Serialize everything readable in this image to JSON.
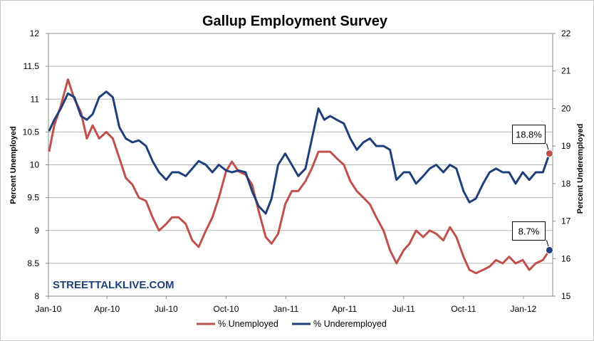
{
  "chart_data": {
    "type": "line",
    "title": "Gallup Employment Survey",
    "watermark": "STREETTALKLIVE.COM",
    "y_left": {
      "label": "Percent Unemployed",
      "range": [
        8,
        12
      ],
      "ticks": [
        "8",
        "8.5",
        "9",
        "9.5",
        "10",
        "10.5",
        "11",
        "11.5",
        "12"
      ]
    },
    "y_right": {
      "label": "Percent Underemployed",
      "range": [
        15,
        22
      ],
      "ticks": [
        "15",
        "16",
        "17",
        "18",
        "19",
        "20",
        "21",
        "22"
      ]
    },
    "x_axis": {
      "range": [
        "2010-01-01",
        "2012-02-15"
      ],
      "ticks": [
        {
          "date": "2010-01-01",
          "label": "Jan-10"
        },
        {
          "date": "2010-04-01",
          "label": "Apr-10"
        },
        {
          "date": "2010-07-01",
          "label": "Jul-10"
        },
        {
          "date": "2010-10-01",
          "label": "Oct-10"
        },
        {
          "date": "2011-01-01",
          "label": "Jan-11"
        },
        {
          "date": "2011-04-01",
          "label": "Apr-11"
        },
        {
          "date": "2011-07-01",
          "label": "Jul-11"
        },
        {
          "date": "2011-10-01",
          "label": "Oct-11"
        },
        {
          "date": "2012-01-01",
          "label": "Jan-12"
        }
      ]
    },
    "grid": "horizontal",
    "legend_position": "bottom",
    "series": [
      {
        "name": "% Unemployed",
        "axis": "left",
        "color": "#c0504d",
        "points": [
          [
            "2010-01-02",
            10.2
          ],
          [
            "2010-01-10",
            10.6
          ],
          [
            "2010-01-20",
            10.9
          ],
          [
            "2010-01-31",
            11.3
          ],
          [
            "2010-02-10",
            11.0
          ],
          [
            "2010-02-20",
            10.8
          ],
          [
            "2010-03-01",
            10.4
          ],
          [
            "2010-03-10",
            10.6
          ],
          [
            "2010-03-20",
            10.4
          ],
          [
            "2010-03-31",
            10.5
          ],
          [
            "2010-04-10",
            10.4
          ],
          [
            "2010-04-20",
            10.1
          ],
          [
            "2010-04-30",
            9.8
          ],
          [
            "2010-05-10",
            9.7
          ],
          [
            "2010-05-20",
            9.5
          ],
          [
            "2010-05-31",
            9.45
          ],
          [
            "2010-06-10",
            9.2
          ],
          [
            "2010-06-20",
            9.0
          ],
          [
            "2010-07-01",
            9.1
          ],
          [
            "2010-07-10",
            9.2
          ],
          [
            "2010-07-20",
            9.2
          ],
          [
            "2010-07-31",
            9.1
          ],
          [
            "2010-08-10",
            8.85
          ],
          [
            "2010-08-20",
            8.75
          ],
          [
            "2010-08-31",
            9.0
          ],
          [
            "2010-09-10",
            9.2
          ],
          [
            "2010-09-20",
            9.5
          ],
          [
            "2010-10-01",
            9.9
          ],
          [
            "2010-10-10",
            10.05
          ],
          [
            "2010-10-20",
            9.9
          ],
          [
            "2010-10-31",
            9.85
          ],
          [
            "2010-11-10",
            9.7
          ],
          [
            "2010-11-20",
            9.3
          ],
          [
            "2010-12-01",
            8.9
          ],
          [
            "2010-12-10",
            8.8
          ],
          [
            "2010-12-20",
            8.95
          ],
          [
            "2010-12-31",
            9.4
          ],
          [
            "2011-01-10",
            9.6
          ],
          [
            "2011-01-20",
            9.6
          ],
          [
            "2011-01-31",
            9.75
          ],
          [
            "2011-02-10",
            9.95
          ],
          [
            "2011-02-20",
            10.2
          ],
          [
            "2011-03-01",
            10.2
          ],
          [
            "2011-03-10",
            10.2
          ],
          [
            "2011-03-20",
            10.1
          ],
          [
            "2011-03-31",
            10.0
          ],
          [
            "2011-04-10",
            9.75
          ],
          [
            "2011-04-20",
            9.6
          ],
          [
            "2011-04-30",
            9.5
          ],
          [
            "2011-05-10",
            9.4
          ],
          [
            "2011-05-20",
            9.2
          ],
          [
            "2011-05-31",
            9.0
          ],
          [
            "2011-06-10",
            8.7
          ],
          [
            "2011-06-20",
            8.5
          ],
          [
            "2011-07-01",
            8.7
          ],
          [
            "2011-07-10",
            8.8
          ],
          [
            "2011-07-20",
            9.0
          ],
          [
            "2011-07-31",
            8.9
          ],
          [
            "2011-08-10",
            9.0
          ],
          [
            "2011-08-20",
            8.95
          ],
          [
            "2011-08-31",
            8.85
          ],
          [
            "2011-09-10",
            9.05
          ],
          [
            "2011-09-20",
            8.9
          ],
          [
            "2011-10-01",
            8.6
          ],
          [
            "2011-10-10",
            8.4
          ],
          [
            "2011-10-20",
            8.35
          ],
          [
            "2011-10-31",
            8.4
          ],
          [
            "2011-11-10",
            8.45
          ],
          [
            "2011-11-20",
            8.55
          ],
          [
            "2011-11-30",
            8.5
          ],
          [
            "2011-12-10",
            8.6
          ],
          [
            "2011-12-20",
            8.5
          ],
          [
            "2011-12-31",
            8.55
          ],
          [
            "2012-01-10",
            8.4
          ],
          [
            "2012-01-20",
            8.5
          ],
          [
            "2012-01-31",
            8.55
          ],
          [
            "2012-02-10",
            8.7
          ]
        ]
      },
      {
        "name": "% Underemployed",
        "axis": "right",
        "color": "#1f3f7a",
        "points": [
          [
            "2010-01-02",
            19.4
          ],
          [
            "2010-01-10",
            19.7
          ],
          [
            "2010-01-20",
            20.0
          ],
          [
            "2010-01-31",
            20.4
          ],
          [
            "2010-02-10",
            20.3
          ],
          [
            "2010-02-20",
            19.8
          ],
          [
            "2010-03-01",
            19.7
          ],
          [
            "2010-03-10",
            19.85
          ],
          [
            "2010-03-20",
            20.3
          ],
          [
            "2010-03-31",
            20.45
          ],
          [
            "2010-04-10",
            20.3
          ],
          [
            "2010-04-20",
            19.5
          ],
          [
            "2010-04-30",
            19.2
          ],
          [
            "2010-05-10",
            19.1
          ],
          [
            "2010-05-20",
            19.15
          ],
          [
            "2010-05-31",
            19.0
          ],
          [
            "2010-06-10",
            18.6
          ],
          [
            "2010-06-20",
            18.3
          ],
          [
            "2010-07-01",
            18.1
          ],
          [
            "2010-07-10",
            18.3
          ],
          [
            "2010-07-20",
            18.3
          ],
          [
            "2010-07-31",
            18.2
          ],
          [
            "2010-08-10",
            18.4
          ],
          [
            "2010-08-20",
            18.6
          ],
          [
            "2010-08-31",
            18.5
          ],
          [
            "2010-09-10",
            18.3
          ],
          [
            "2010-09-20",
            18.5
          ],
          [
            "2010-10-01",
            18.35
          ],
          [
            "2010-10-10",
            18.3
          ],
          [
            "2010-10-20",
            18.35
          ],
          [
            "2010-10-31",
            18.3
          ],
          [
            "2010-11-10",
            17.8
          ],
          [
            "2010-11-20",
            17.4
          ],
          [
            "2010-12-01",
            17.2
          ],
          [
            "2010-12-10",
            17.6
          ],
          [
            "2010-12-20",
            18.5
          ],
          [
            "2010-12-31",
            18.8
          ],
          [
            "2011-01-10",
            18.5
          ],
          [
            "2011-01-20",
            18.2
          ],
          [
            "2011-01-31",
            18.4
          ],
          [
            "2011-02-10",
            19.2
          ],
          [
            "2011-02-20",
            20.0
          ],
          [
            "2011-03-01",
            19.7
          ],
          [
            "2011-03-10",
            19.8
          ],
          [
            "2011-03-20",
            19.7
          ],
          [
            "2011-03-31",
            19.6
          ],
          [
            "2011-04-10",
            19.2
          ],
          [
            "2011-04-20",
            18.9
          ],
          [
            "2011-04-30",
            19.1
          ],
          [
            "2011-05-10",
            19.2
          ],
          [
            "2011-05-20",
            19.0
          ],
          [
            "2011-05-31",
            19.0
          ],
          [
            "2011-06-10",
            18.9
          ],
          [
            "2011-06-20",
            18.1
          ],
          [
            "2011-07-01",
            18.3
          ],
          [
            "2011-07-10",
            18.3
          ],
          [
            "2011-07-20",
            18.0
          ],
          [
            "2011-07-31",
            18.2
          ],
          [
            "2011-08-10",
            18.4
          ],
          [
            "2011-08-20",
            18.5
          ],
          [
            "2011-08-31",
            18.3
          ],
          [
            "2011-09-10",
            18.5
          ],
          [
            "2011-09-20",
            18.4
          ],
          [
            "2011-10-01",
            17.8
          ],
          [
            "2011-10-10",
            17.5
          ],
          [
            "2011-10-20",
            17.6
          ],
          [
            "2011-10-31",
            18.0
          ],
          [
            "2011-11-10",
            18.3
          ],
          [
            "2011-11-20",
            18.4
          ],
          [
            "2011-11-30",
            18.3
          ],
          [
            "2011-12-10",
            18.3
          ],
          [
            "2011-12-20",
            18.0
          ],
          [
            "2011-12-31",
            18.3
          ],
          [
            "2012-01-10",
            18.1
          ],
          [
            "2012-01-20",
            18.3
          ],
          [
            "2012-01-31",
            18.3
          ],
          [
            "2012-02-10",
            18.8
          ]
        ]
      }
    ],
    "annotations": [
      {
        "series": "% Underemployed",
        "date": "2012-02-10",
        "value": 18.8,
        "label": "18.8%"
      },
      {
        "series": "% Unemployed",
        "date": "2012-02-10",
        "value": 8.7,
        "label": "8.7%"
      }
    ]
  }
}
